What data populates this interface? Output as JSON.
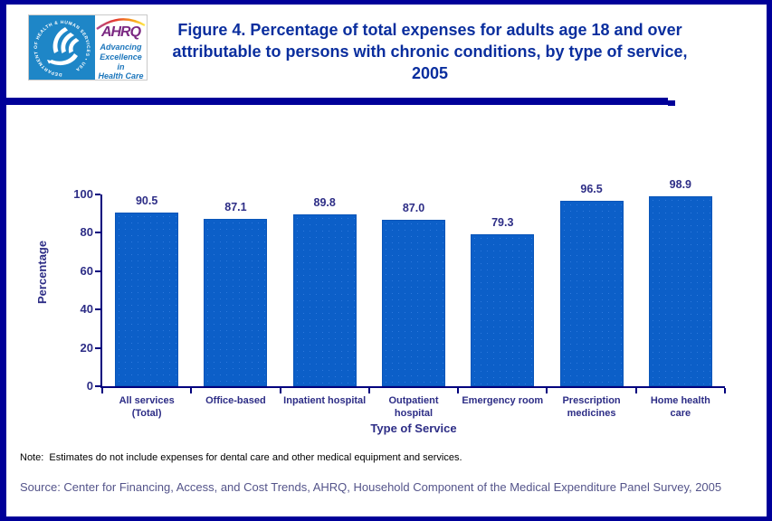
{
  "header": {
    "title": "Figure 4. Percentage of total expenses for adults age 18 and over attributable to persons with chronic conditions, by type of service, 2005",
    "logo": {
      "hhs_seal_text": "DEPARTMENT OF HEALTH & HUMAN SERVICES • USA",
      "ahrq_acronym": "AHRQ",
      "ahrq_tagline": "Advancing\nExcellence in\nHealth Care"
    }
  },
  "chart_data": {
    "type": "bar",
    "title": "Figure 4. Percentage of total expenses for adults age 18 and over attributable to persons with chronic conditions, by type of service, 2005",
    "categories": [
      "All services (Total)",
      "Office-based",
      "Inpatient hospital",
      "Outpatient hospital",
      "Emergency room",
      "Prescription medicines",
      "Home health care"
    ],
    "category_labels_wrapped": [
      "All services\n(Total)",
      "Office-based",
      "Inpatient hospital",
      "Outpatient\nhospital",
      "Emergency room",
      "Prescription\nmedicines",
      "Home health\ncare"
    ],
    "values": [
      90.5,
      87.1,
      89.8,
      87.0,
      79.3,
      96.5,
      98.9
    ],
    "value_labels": [
      "90.5",
      "87.1",
      "89.8",
      "87.0",
      "79.3",
      "96.5",
      "98.9"
    ],
    "xlabel": "Type of Service",
    "ylabel": "Percentage",
    "ylim": [
      0,
      100
    ],
    "yticks": [
      0,
      20,
      40,
      60,
      80,
      100
    ],
    "grid": false,
    "legend": "none"
  },
  "footer": {
    "note": "Note:  Estimates do not include expenses for dental care and other medical equipment and services.",
    "source": "Source: Center for Financing, Access, and Cost Trends, AHRQ, Household Component of the Medical Expenditure Panel Survey, 2005"
  },
  "colors": {
    "frame_navy": "#000099",
    "title_text": "#0A2E9E",
    "chart_text_navy": "#2D2D86",
    "axis_navy": "#00007e",
    "bar_fill": "#0C5FC8",
    "hhs_blue": "#1E86C7",
    "ahrq_purple": "#7B2982",
    "tagline_blue": "#1B75BB",
    "source_text": "#54548A",
    "note_text": "#000000"
  }
}
